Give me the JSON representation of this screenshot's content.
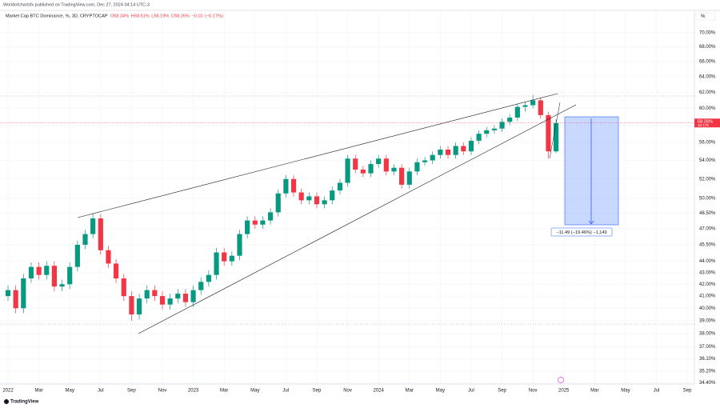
{
  "header": "Worldofchartsfx published on TradingView.com, Dec 27, 2024 04:14 UTC-3",
  "chart_data": {
    "type": "candlestick",
    "title": "Market Cap BTC Dominance, %, 3D, CRYPTOCAP",
    "legend_values": [
      58.34,
      58.61,
      58.19,
      58.26,
      -0.1,
      -0.17
    ],
    "legend_value_labels": [
      "O58.34%",
      "H58.61%",
      "L58.19%",
      "C58.26%",
      "−0.10",
      "(−0.17%)"
    ],
    "price_label": {
      "value": 58.26,
      "label": "58.26%"
    },
    "countdown": "1d 17h",
    "measure_label": "−11.49 (−19.46%) −1,149",
    "scale_button": "%",
    "footer": "TradingView",
    "log_scale": true,
    "grid": true,
    "up_color": "#089981",
    "down_color": "#f23645",
    "xlim": [
      -0.26,
      44.46
    ],
    "ylim": [
      34.3,
      73.1
    ],
    "xticks": [
      {
        "value": 0,
        "label": "2022"
      },
      {
        "value": 2,
        "label": "Mar"
      },
      {
        "value": 4,
        "label": "May"
      },
      {
        "value": 6,
        "label": "Jul"
      },
      {
        "value": 8,
        "label": "Sep"
      },
      {
        "value": 10,
        "label": "Nov"
      },
      {
        "value": 12,
        "label": "2023"
      },
      {
        "value": 14,
        "label": "Mar"
      },
      {
        "value": 16,
        "label": "May"
      },
      {
        "value": 18,
        "label": "Jul"
      },
      {
        "value": 20,
        "label": "Sep"
      },
      {
        "value": 22,
        "label": "Nov"
      },
      {
        "value": 24,
        "label": "2024"
      },
      {
        "value": 26,
        "label": "Mar"
      },
      {
        "value": 28,
        "label": "May"
      },
      {
        "value": 30,
        "label": "Jul"
      },
      {
        "value": 32,
        "label": "Sep"
      },
      {
        "value": 34,
        "label": "Nov"
      },
      {
        "value": 36,
        "label": "2025"
      },
      {
        "value": 38,
        "label": "Mar"
      },
      {
        "value": 40,
        "label": "May"
      },
      {
        "value": 42,
        "label": "Jul"
      },
      {
        "value": 44,
        "label": "Sep"
      }
    ],
    "yticks": [
      {
        "value": 70,
        "label": "70.00%"
      },
      {
        "value": 68,
        "label": "68.00%"
      },
      {
        "value": 66,
        "label": "66.00%"
      },
      {
        "value": 64,
        "label": "64.00%"
      },
      {
        "value": 62,
        "label": "62.00%"
      },
      {
        "value": 60,
        "label": "60.00%"
      },
      {
        "value": 56,
        "label": "56.00%"
      },
      {
        "value": 54,
        "label": "54.00%"
      },
      {
        "value": 52,
        "label": "52.00%"
      },
      {
        "value": 50,
        "label": "50.00%"
      },
      {
        "value": 48.5,
        "label": "48.50%"
      },
      {
        "value": 47,
        "label": "47.00%"
      },
      {
        "value": 45.5,
        "label": "45.50%"
      },
      {
        "value": 44,
        "label": "44.00%"
      },
      {
        "value": 43,
        "label": "43.00%"
      },
      {
        "value": 42,
        "label": "42.00%"
      },
      {
        "value": 41,
        "label": "41.00%"
      },
      {
        "value": 40,
        "label": "40.00%"
      },
      {
        "value": 39,
        "label": "39.00%"
      },
      {
        "value": 38,
        "label": "38.00%"
      },
      {
        "value": 37,
        "label": "37.00%"
      },
      {
        "value": 36.1,
        "label": "36.10%"
      },
      {
        "value": 35.2,
        "label": "35.20%"
      },
      {
        "value": 34.4,
        "label": "34.40%"
      }
    ],
    "x": [
      0,
      0.5,
      1,
      1.5,
      2,
      2.5,
      3,
      3.5,
      4,
      4.5,
      5,
      5.5,
      6,
      6.5,
      7,
      7.5,
      8,
      8.5,
      9,
      9.5,
      10,
      10.5,
      11,
      11.5,
      12,
      12.5,
      13,
      13.5,
      14,
      14.5,
      15,
      15.5,
      16,
      16.5,
      17,
      17.5,
      18,
      18.5,
      19,
      19.5,
      20,
      20.5,
      21,
      21.5,
      22,
      22.5,
      23,
      23.5,
      24,
      24.5,
      25,
      25.5,
      26,
      26.5,
      27,
      27.5,
      28,
      28.5,
      29,
      29.5,
      30,
      30.5,
      31,
      31.5,
      32,
      32.5,
      33,
      33.5,
      34,
      34.5,
      35,
      35.5
    ],
    "ohlc": [
      [
        41.0,
        41.9,
        40.6,
        41.5
      ],
      [
        41.5,
        41.9,
        39.6,
        40.0
      ],
      [
        40.0,
        42.9,
        39.6,
        42.5
      ],
      [
        42.5,
        43.9,
        42.1,
        43.5
      ],
      [
        43.5,
        43.9,
        42.4,
        42.8
      ],
      [
        42.8,
        44.0,
        42.4,
        43.6
      ],
      [
        43.6,
        44.0,
        41.4,
        41.8
      ],
      [
        41.8,
        42.4,
        41.4,
        42.0
      ],
      [
        42.0,
        43.9,
        41.6,
        43.5
      ],
      [
        43.5,
        45.9,
        43.1,
        45.5
      ],
      [
        45.5,
        46.9,
        45.1,
        46.5
      ],
      [
        46.5,
        48.5,
        46.1,
        48.0
      ],
      [
        48.0,
        48.4,
        44.6,
        45.0
      ],
      [
        45.0,
        45.4,
        43.4,
        43.8
      ],
      [
        43.8,
        44.2,
        42.1,
        42.5
      ],
      [
        42.5,
        42.9,
        40.6,
        41.0
      ],
      [
        41.0,
        41.4,
        39.0,
        39.5
      ],
      [
        39.5,
        41.2,
        39.1,
        40.8
      ],
      [
        40.8,
        41.9,
        40.4,
        41.5
      ],
      [
        41.5,
        41.9,
        40.6,
        41.0
      ],
      [
        41.0,
        41.4,
        39.9,
        40.3
      ],
      [
        40.3,
        41.2,
        39.9,
        40.8
      ],
      [
        40.8,
        41.6,
        40.4,
        41.2
      ],
      [
        41.2,
        41.6,
        40.1,
        40.5
      ],
      [
        40.5,
        41.9,
        40.1,
        41.5
      ],
      [
        41.5,
        42.6,
        41.1,
        42.2
      ],
      [
        42.2,
        43.2,
        41.8,
        42.8
      ],
      [
        42.8,
        45.2,
        42.4,
        44.8
      ],
      [
        44.8,
        45.2,
        43.6,
        44.0
      ],
      [
        44.0,
        44.9,
        43.6,
        44.5
      ],
      [
        44.5,
        46.9,
        44.1,
        46.5
      ],
      [
        46.5,
        48.2,
        46.1,
        47.8
      ],
      [
        47.8,
        48.2,
        47.0,
        47.4
      ],
      [
        47.4,
        48.2,
        47.0,
        47.8
      ],
      [
        47.8,
        49.0,
        47.4,
        48.6
      ],
      [
        48.6,
        50.9,
        48.2,
        50.5
      ],
      [
        50.5,
        52.4,
        50.1,
        52.0
      ],
      [
        52.0,
        52.4,
        50.2,
        50.6
      ],
      [
        50.6,
        51.0,
        49.4,
        49.8
      ],
      [
        49.8,
        50.6,
        49.4,
        50.2
      ],
      [
        50.2,
        50.6,
        49.0,
        49.4
      ],
      [
        49.4,
        50.2,
        49.0,
        49.8
      ],
      [
        49.8,
        51.2,
        49.4,
        50.8
      ],
      [
        50.8,
        52.0,
        50.4,
        51.6
      ],
      [
        51.6,
        54.6,
        51.2,
        54.2
      ],
      [
        54.2,
        54.6,
        52.6,
        53.0
      ],
      [
        53.0,
        53.4,
        52.2,
        52.6
      ],
      [
        52.6,
        54.0,
        52.2,
        53.6
      ],
      [
        53.6,
        54.6,
        53.2,
        54.2
      ],
      [
        54.2,
        54.6,
        52.4,
        52.8
      ],
      [
        52.8,
        53.6,
        52.4,
        53.2
      ],
      [
        53.2,
        53.6,
        51.0,
        51.4
      ],
      [
        51.4,
        53.2,
        51.0,
        52.8
      ],
      [
        52.8,
        54.2,
        52.4,
        53.8
      ],
      [
        53.8,
        54.4,
        53.4,
        54.0
      ],
      [
        54.0,
        55.0,
        53.6,
        54.6
      ],
      [
        54.6,
        55.6,
        54.2,
        55.2
      ],
      [
        55.2,
        55.6,
        54.2,
        54.6
      ],
      [
        54.6,
        56.0,
        54.2,
        55.6
      ],
      [
        55.6,
        56.0,
        54.6,
        55.0
      ],
      [
        55.0,
        56.6,
        54.6,
        56.2
      ],
      [
        56.2,
        57.4,
        55.8,
        57.0
      ],
      [
        57.0,
        57.8,
        56.6,
        57.4
      ],
      [
        57.4,
        58.0,
        57.0,
        57.6
      ],
      [
        57.6,
        58.8,
        57.2,
        58.4
      ],
      [
        58.4,
        59.3,
        58.0,
        58.9
      ],
      [
        58.9,
        60.6,
        58.5,
        60.2
      ],
      [
        60.2,
        60.8,
        59.6,
        60.4
      ],
      [
        60.4,
        61.7,
        60.0,
        61.0
      ],
      [
        61.0,
        61.4,
        58.8,
        59.2
      ],
      [
        59.2,
        59.6,
        54.2,
        55.0
      ],
      [
        55.0,
        58.7,
        54.8,
        58.26
      ]
    ]
  }
}
